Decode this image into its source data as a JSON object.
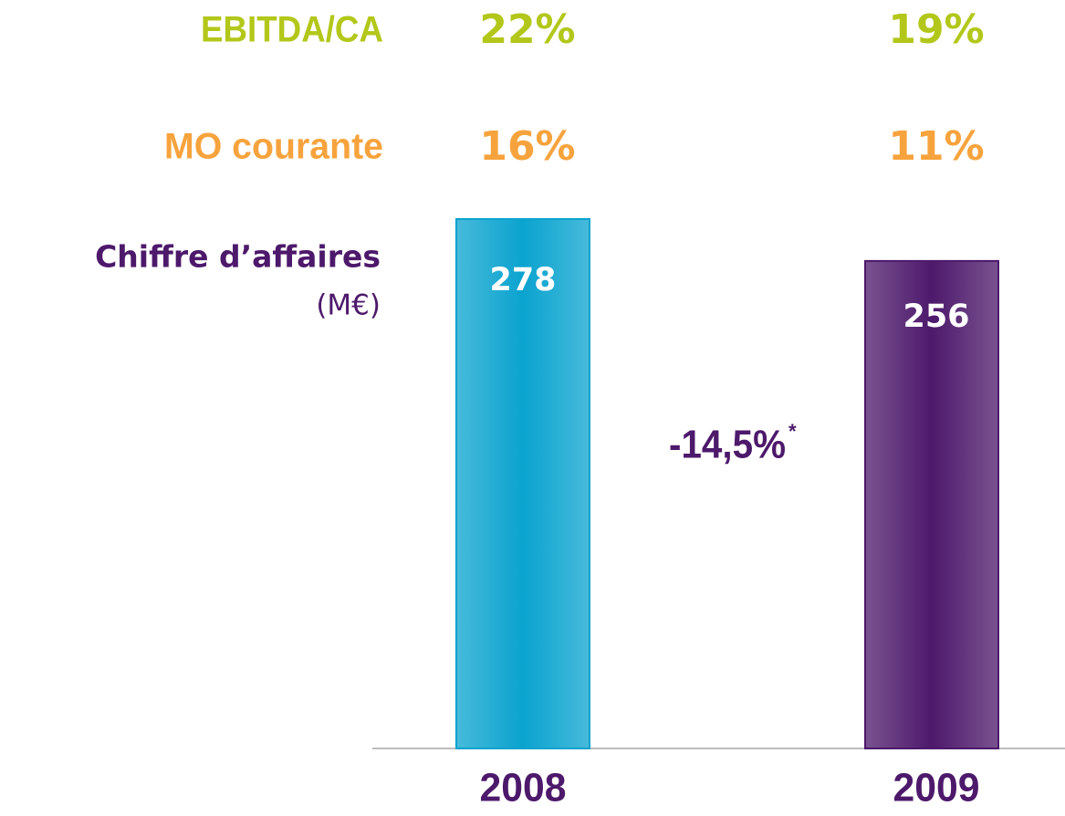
{
  "chart_data": {
    "type": "bar",
    "label": "Chiffre d’affaires",
    "unit": "(M€)",
    "categories": [
      "2008",
      "2009"
    ],
    "values": [
      278,
      256
    ],
    "colors": [
      "#0aa3cf",
      "#4d196b"
    ],
    "annotation": "-14,5%",
    "annotation_note": "*",
    "metrics": [
      {
        "name": "EBITDA/CA",
        "color": "#b3c71a",
        "values": [
          22,
          19
        ],
        "value_labels": [
          "22%",
          "19%"
        ]
      },
      {
        "name": "MO courante",
        "color": "#f7a33d",
        "values": [
          16,
          11
        ],
        "value_labels": [
          "16%",
          "11%"
        ]
      }
    ]
  }
}
